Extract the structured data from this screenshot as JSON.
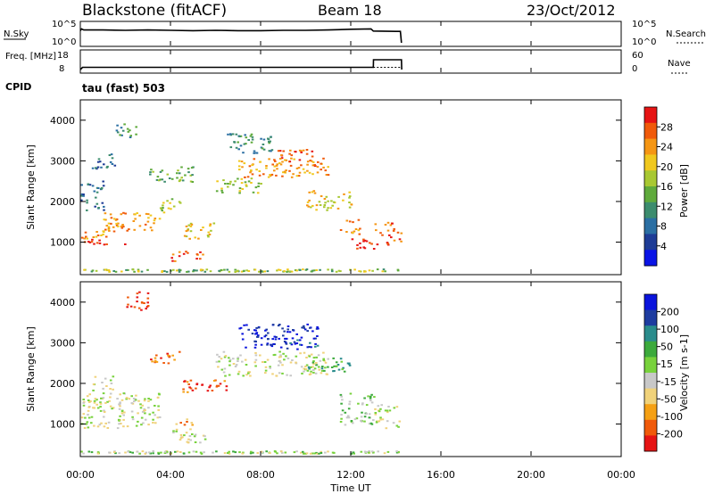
{
  "header": {
    "station": "Blackstone (fitACF)",
    "beam": "Beam 18",
    "date": "23/Oct/2012",
    "cpid_label": "CPID",
    "cpid_text": "tau (fast) 503"
  },
  "x_axis": {
    "label": "Time UT",
    "range_hours": [
      0,
      24
    ],
    "ticks": [
      "00:00",
      "04:00",
      "08:00",
      "12:00",
      "16:00",
      "20:00",
      "00:00"
    ]
  },
  "colors": {
    "power": [
      "#0a14e6",
      "#1e3c96",
      "#2b6fa3",
      "#3c8c6e",
      "#5faa3c",
      "#a8c832",
      "#f0c81e",
      "#f59614",
      "#f05a0a",
      "#e61414"
    ],
    "velocity": [
      "#e61414",
      "#f05a0a",
      "#f5a014",
      "#f0d27a",
      "#c8c8c8",
      "#78d23c",
      "#3caa3c",
      "#2a8c8c",
      "#1e3ca0",
      "#0a14dc"
    ]
  },
  "chart_data": [
    {
      "type": "line",
      "name": "noise",
      "ylabel_left": "N.Sky",
      "ylabel_right": "N.Search",
      "left_ticks": [
        "10^5",
        "10^0"
      ],
      "right_ticks": [
        "10^5",
        "10^0"
      ],
      "x": [
        0,
        0.05,
        0.15,
        1,
        2,
        3,
        4,
        5,
        6,
        7,
        8,
        9,
        10,
        11,
        12,
        12.9,
        13,
        14,
        14.2,
        14.25
      ],
      "values": [
        3.4,
        3.9,
        3.6,
        3.6,
        3.5,
        3.6,
        3.5,
        3.4,
        3.5,
        3.4,
        3.4,
        3.5,
        3.5,
        3.6,
        3.8,
        3.9,
        3.3,
        3.2,
        3.2,
        0
      ]
    },
    {
      "type": "line",
      "name": "frequency",
      "ylabel_left": "Freq. [MHz]",
      "ylabel_right": "Nave",
      "left_ticks": [
        "18",
        "8"
      ],
      "right_ticks": [
        "60",
        "0"
      ],
      "x": [
        0,
        0.1,
        13,
        13.01,
        14.25,
        14.26
      ],
      "values": [
        8,
        9.5,
        9.5,
        14.5,
        14.5,
        8
      ]
    },
    {
      "type": "heatmap",
      "name": "power",
      "ylabel": "Slant Range [km]",
      "xlim": [
        0,
        24
      ],
      "ylim": [
        200,
        4500
      ],
      "yticks": [
        1000,
        2000,
        3000,
        4000
      ],
      "colorbar_label": "Power [dB]",
      "colorbar_ticks": [
        "28",
        "24",
        "20",
        "16",
        "12",
        "8",
        "4"
      ],
      "features": [
        {
          "t": [
            0,
            2
          ],
          "r": [
            950,
            1100
          ],
          "level": 9
        },
        {
          "t": [
            0,
            1.5
          ],
          "r": [
            1100,
            1300
          ],
          "level": 7
        },
        {
          "t": [
            1,
            3.5
          ],
          "r": [
            1300,
            1750
          ],
          "level": 7
        },
        {
          "t": [
            3.5,
            4.5
          ],
          "r": [
            1750,
            2100
          ],
          "level": 5
        },
        {
          "t": [
            0,
            1
          ],
          "r": [
            1800,
            2600
          ],
          "level": 2
        },
        {
          "t": [
            0.5,
            1.5
          ],
          "r": [
            2800,
            3200
          ],
          "level": 2
        },
        {
          "t": [
            1.5,
            2.5
          ],
          "r": [
            3600,
            4000
          ],
          "level": 3
        },
        {
          "t": [
            3,
            5
          ],
          "r": [
            2500,
            2900
          ],
          "level": 4
        },
        {
          "t": [
            4,
            5.5
          ],
          "r": [
            550,
            800
          ],
          "level": 8
        },
        {
          "t": [
            4.5,
            6
          ],
          "r": [
            1100,
            1500
          ],
          "level": 6
        },
        {
          "t": [
            6,
            8
          ],
          "r": [
            2200,
            2600
          ],
          "level": 5
        },
        {
          "t": [
            7,
            11
          ],
          "r": [
            2600,
            3100
          ],
          "level": 7
        },
        {
          "t": [
            8.5,
            10.5
          ],
          "r": [
            2900,
            3300
          ],
          "level": 8
        },
        {
          "t": [
            10,
            12
          ],
          "r": [
            1800,
            2300
          ],
          "level": 6
        },
        {
          "t": [
            11.5,
            12.5
          ],
          "r": [
            1200,
            1600
          ],
          "level": 7
        },
        {
          "t": [
            12,
            13
          ],
          "r": [
            850,
            1100
          ],
          "level": 9
        },
        {
          "t": [
            13,
            14.2
          ],
          "r": [
            950,
            1500
          ],
          "level": 8
        },
        {
          "t": [
            6.5,
            8.5
          ],
          "r": [
            3200,
            3700
          ],
          "level": 3
        }
      ]
    },
    {
      "type": "heatmap",
      "name": "velocity",
      "ylabel": "Slant Range [km]",
      "xlim": [
        0,
        24
      ],
      "ylim": [
        200,
        4500
      ],
      "yticks": [
        1000,
        2000,
        3000,
        4000
      ],
      "colorbar_label": "Velocity [m s-1]",
      "colorbar_ticks": [
        "200",
        "100",
        "50",
        "15",
        "-15",
        "-50",
        "-100",
        "-200"
      ],
      "features": [
        {
          "t": [
            0,
            3.5
          ],
          "r": [
            900,
            1800
          ],
          "level": 4
        },
        {
          "t": [
            2,
            3
          ],
          "r": [
            3800,
            4300
          ],
          "level": 0
        },
        {
          "t": [
            3,
            4.5
          ],
          "r": [
            2500,
            2800
          ],
          "level": 1
        },
        {
          "t": [
            4.5,
            6.5
          ],
          "r": [
            1800,
            2100
          ],
          "level": 1
        },
        {
          "t": [
            4,
            5.5
          ],
          "r": [
            500,
            900
          ],
          "level": 4
        },
        {
          "t": [
            4.2,
            5
          ],
          "r": [
            1000,
            1200
          ],
          "level": 2
        },
        {
          "t": [
            6,
            11
          ],
          "r": [
            2200,
            2800
          ],
          "level": 4
        },
        {
          "t": [
            7,
            10.5
          ],
          "r": [
            2900,
            3500
          ],
          "level": 9
        },
        {
          "t": [
            9,
            10.5
          ],
          "r": [
            2850,
            3150
          ],
          "level": 8
        },
        {
          "t": [
            10,
            12
          ],
          "r": [
            2300,
            2700
          ],
          "level": 6
        },
        {
          "t": [
            11.5,
            13
          ],
          "r": [
            1000,
            1800
          ],
          "level": 5
        },
        {
          "t": [
            13,
            14.2
          ],
          "r": [
            900,
            1500
          ],
          "level": 4
        },
        {
          "t": [
            0.5,
            1.5
          ],
          "r": [
            1800,
            2200
          ],
          "level": 4
        }
      ]
    }
  ]
}
